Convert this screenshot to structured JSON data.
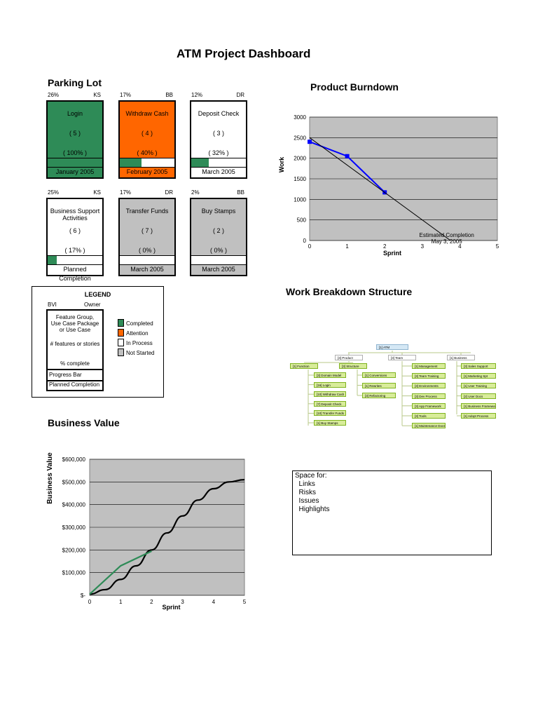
{
  "title": "ATM Project Dashboard",
  "parking_lot": {
    "heading": "Parking Lot",
    "cards": [
      {
        "pct_label": "26%",
        "owner": "KS",
        "name": "Login",
        "count": "( 5 )",
        "complete": "( 100% )",
        "date": "January 2005",
        "status": "completed",
        "progress": 1.0
      },
      {
        "pct_label": "17%",
        "owner": "BB",
        "name": "Withdraw Cash",
        "count": "( 4 )",
        "complete": "( 40% )",
        "date": "February 2005",
        "status": "attention",
        "progress": 0.4
      },
      {
        "pct_label": "12%",
        "owner": "DR",
        "name": "Deposit Check",
        "count": "( 3 )",
        "complete": "( 32% )",
        "date": "March 2005",
        "status": "in-process",
        "progress": 0.32
      },
      {
        "pct_label": "25%",
        "owner": "KS",
        "name": "Business Support Activities",
        "count": "( 6 )",
        "complete": "( 17% )",
        "date": "Planned Completion",
        "status": "in-process",
        "progress": 0.17
      },
      {
        "pct_label": "17%",
        "owner": "DR",
        "name": "Transfer Funds",
        "count": "( 7 )",
        "complete": "( 0% )",
        "date": "March 2005",
        "status": "not-started",
        "progress": 0.0
      },
      {
        "pct_label": "2%",
        "owner": "BB",
        "name": "Buy Stamps",
        "count": "( 2 )",
        "complete": "( 0% )",
        "date": "March 2005",
        "status": "not-started",
        "progress": 0.0
      }
    ]
  },
  "legend": {
    "title": "LEGEND",
    "bvi": "BVI",
    "owner": "Owner",
    "feature_line1": "Feature Group,",
    "feature_line2": "Use Case Package",
    "feature_line3": "or Use Case",
    "features": "# features or stories",
    "complete": "% complete",
    "progress_bar": "Progress Bar",
    "planned": "Planned Completion",
    "items": [
      {
        "label": "Completed",
        "color": "#2e8b57"
      },
      {
        "label": "Attention",
        "color": "#ff6600"
      },
      {
        "label": "In Process",
        "color": "#ffffff"
      },
      {
        "label": "Not Started",
        "color": "#c0c0c0"
      }
    ]
  },
  "colors": {
    "completed": "#2e8b57",
    "attention": "#ff6600",
    "in-process": "#ffffff",
    "not-started": "#c0c0c0",
    "plot_bg": "#c0c0c0"
  },
  "wbs": {
    "heading": "Work Breakdown Structure",
    "root": "[1] ATM",
    "level1": [
      "[3] Product",
      "[3] Team",
      "[1] Business"
    ],
    "product": [
      "[1] Function",
      "[3] Structure"
    ],
    "function_items": [
      "[3] Domain Model",
      "[16] Login",
      "[10] Withdraw Cash",
      "[7] Deposit Check",
      "[10] Transfer Funds",
      "[1] Buy Stamps"
    ],
    "structure_items": [
      "[1] Conversions",
      "[1] Rewrites",
      "[3] Refactoring"
    ],
    "team_items": [
      "[1] Management",
      "[3] Team Training",
      "[3] Environments",
      "[3] Dev Process",
      "[3] App Framework",
      "[3] Tools",
      "[1] Maintenance Docs"
    ],
    "business_items": [
      "[3] Sales Support",
      "[1] Marketing Spt",
      "[1] User Training",
      "[2] User Docs",
      "[1] Business Framework",
      "[1] Adopt Process"
    ]
  },
  "notes": {
    "lines": [
      "Space for:",
      "  Links",
      "  Risks",
      "  Issues",
      "  Highlights"
    ]
  },
  "chart_data": [
    {
      "type": "line",
      "title": "Product Burndown",
      "xlabel": "Sprint",
      "ylabel": "Work",
      "xlim": [
        0,
        5
      ],
      "ylim": [
        0,
        3000
      ],
      "xticks": [
        0,
        1,
        2,
        3,
        4,
        5
      ],
      "yticks": [
        0,
        500,
        1000,
        1500,
        2000,
        2500,
        3000
      ],
      "grid": true,
      "series": [
        {
          "name": "",
          "color": "#0000ff",
          "markers": true,
          "x": [
            0,
            1,
            2
          ],
          "y": [
            2400,
            2050,
            1170
          ]
        },
        {
          "name": "",
          "color": "#000000",
          "markers": false,
          "x": [
            0,
            3.75
          ],
          "y": [
            2500,
            0
          ]
        }
      ],
      "annotation": {
        "line1": "Estimated Completion",
        "line2": "May 3, 2005",
        "x": 3.8,
        "y": 0
      }
    },
    {
      "type": "line",
      "title": "Business Value",
      "xlabel": "Sprint",
      "ylabel": "Business Value",
      "xlim": [
        0,
        5
      ],
      "ylim": [
        0,
        600000
      ],
      "xticks": [
        0,
        1,
        2,
        3,
        4,
        5
      ],
      "ytick_values": [
        0,
        100000,
        200000,
        300000,
        400000,
        500000,
        600000
      ],
      "ytick_labels": [
        "$-",
        "$100,000",
        "$200,000",
        "$300,000",
        "$400,000",
        "$500,000",
        "$600,000"
      ],
      "grid": true,
      "series": [
        {
          "name": "",
          "color": "#000000",
          "x": [
            0,
            0.5,
            1,
            1.5,
            2,
            2.5,
            3,
            3.5,
            4,
            4.5,
            5
          ],
          "y": [
            5000,
            25000,
            70000,
            130000,
            200000,
            275000,
            350000,
            420000,
            470000,
            500000,
            510000
          ]
        },
        {
          "name": "",
          "color": "#2e8b57",
          "x": [
            0,
            1,
            2
          ],
          "y": [
            5000,
            130000,
            195000
          ]
        }
      ]
    }
  ]
}
